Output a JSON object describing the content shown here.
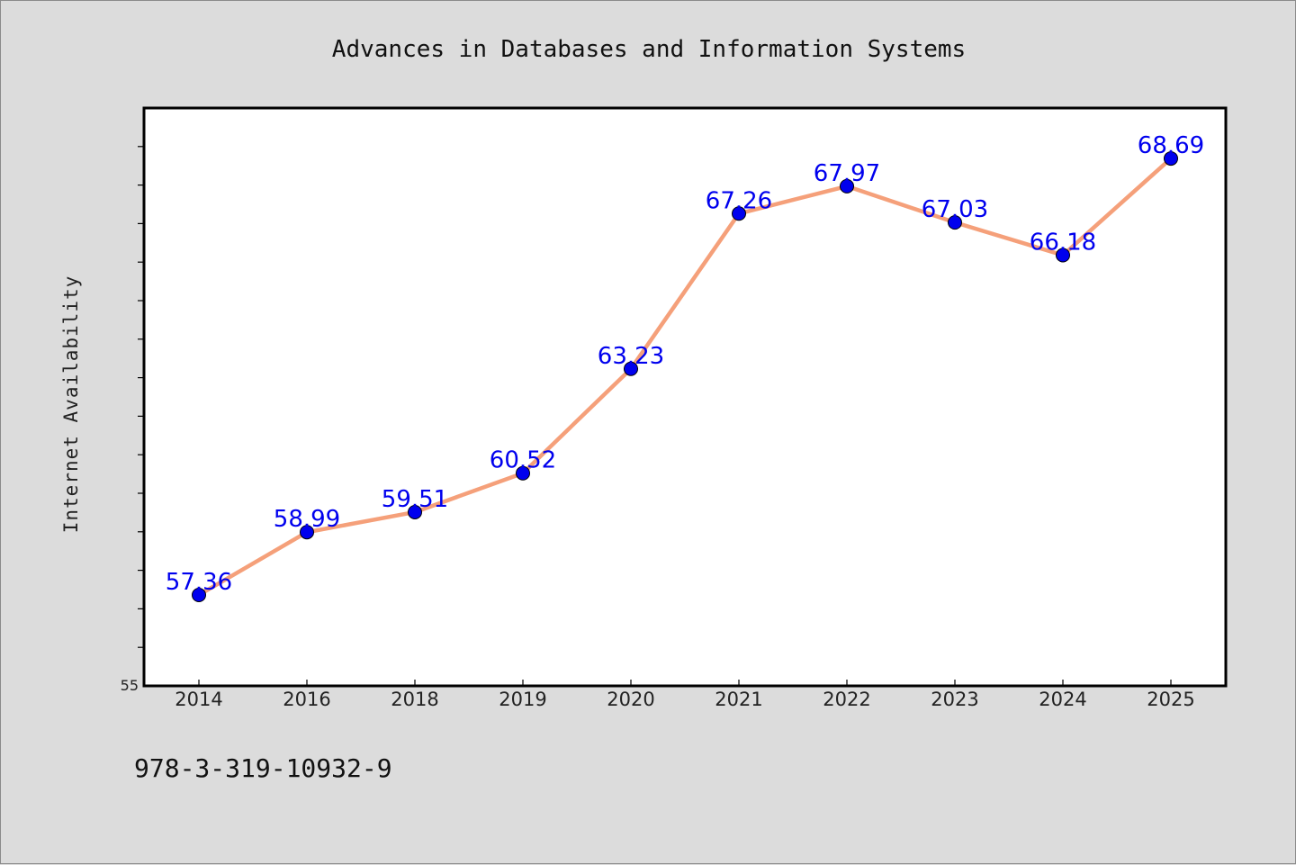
{
  "chart_data": {
    "type": "line",
    "title": "Advances in Databases and Information Systems",
    "ylabel": "Internet Availability",
    "xlabel": "",
    "categories": [
      "2014",
      "2016",
      "2018",
      "2019",
      "2020",
      "2021",
      "2022",
      "2023",
      "2024",
      "2025"
    ],
    "series": [
      {
        "values": [
          57.36,
          58.99,
          59.51,
          60.52,
          63.23,
          67.26,
          67.97,
          67.03,
          66.18,
          68.69
        ],
        "labels": [
          "57.36",
          "58.99",
          "59.51",
          "60.52",
          "63.23",
          "67.26",
          "67.97",
          "67.03",
          "66.18",
          "68.69"
        ]
      }
    ],
    "ylim": [
      55,
      70
    ],
    "y_tick_label": "55",
    "grid": false,
    "line_color": "#f5a07a",
    "marker_color": "#0000ee",
    "label_color": "#0000ee"
  },
  "footnote": "978-3-319-10932-9"
}
